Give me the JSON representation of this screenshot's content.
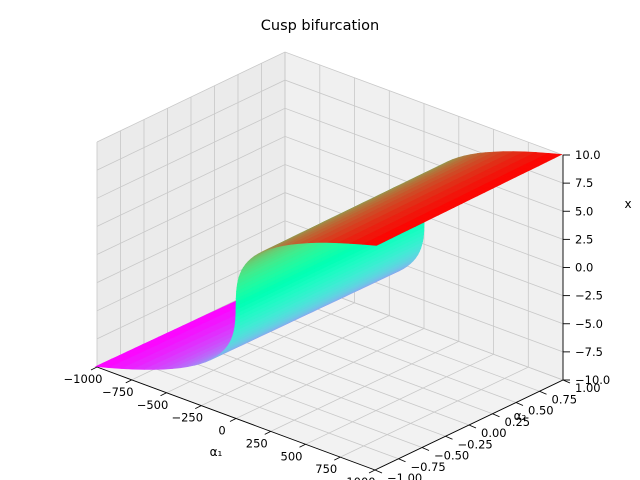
{
  "chart_data": {
    "type": "surface3d",
    "title": "Cusp bifurcation",
    "xlabel": "α₁",
    "ylabel": "α₂",
    "zlabel": "x",
    "xlim": [
      -1000,
      1000
    ],
    "ylim": [
      -1,
      1
    ],
    "zlim": [
      -10,
      10
    ],
    "xticks": [
      "−1000",
      "−750",
      "−500",
      "−250",
      "0",
      "250",
      "500",
      "750",
      "1000"
    ],
    "xtick_values": [
      -1000,
      -750,
      -500,
      -250,
      0,
      250,
      500,
      750,
      1000
    ],
    "yticks": [
      "−1.00",
      "−0.75",
      "−0.50",
      "−0.25",
      "0.00",
      "0.25",
      "0.50",
      "0.75",
      "1.00"
    ],
    "ytick_values": [
      -1,
      -0.75,
      -0.5,
      -0.25,
      0,
      0.25,
      0.5,
      0.75,
      1
    ],
    "zticks": [
      "−10.0",
      "−7.5",
      "−5.0",
      "−2.5",
      "0.0",
      "2.5",
      "5.0",
      "7.5",
      "10.0"
    ],
    "ztick_values": [
      -10,
      -7.5,
      -5,
      -2.5,
      0,
      2.5,
      5,
      7.5,
      10
    ],
    "colormap": "rainbow",
    "grid": true,
    "surface": "equilibrium manifold α1 + α2·x − x³ = 0",
    "sampled_points": [
      {
        "a1": -1000,
        "a2": 0,
        "x": -10.0
      },
      {
        "a1": -500,
        "a2": 0,
        "x": -7.94
      },
      {
        "a1": -100,
        "a2": 0,
        "x": -4.64
      },
      {
        "a1": 0,
        "a2": 0,
        "x": 0.0
      },
      {
        "a1": 100,
        "a2": 0,
        "x": 4.64
      },
      {
        "a1": 500,
        "a2": 0,
        "x": 7.94
      },
      {
        "a1": 1000,
        "a2": 0,
        "x": 10.0
      }
    ]
  }
}
